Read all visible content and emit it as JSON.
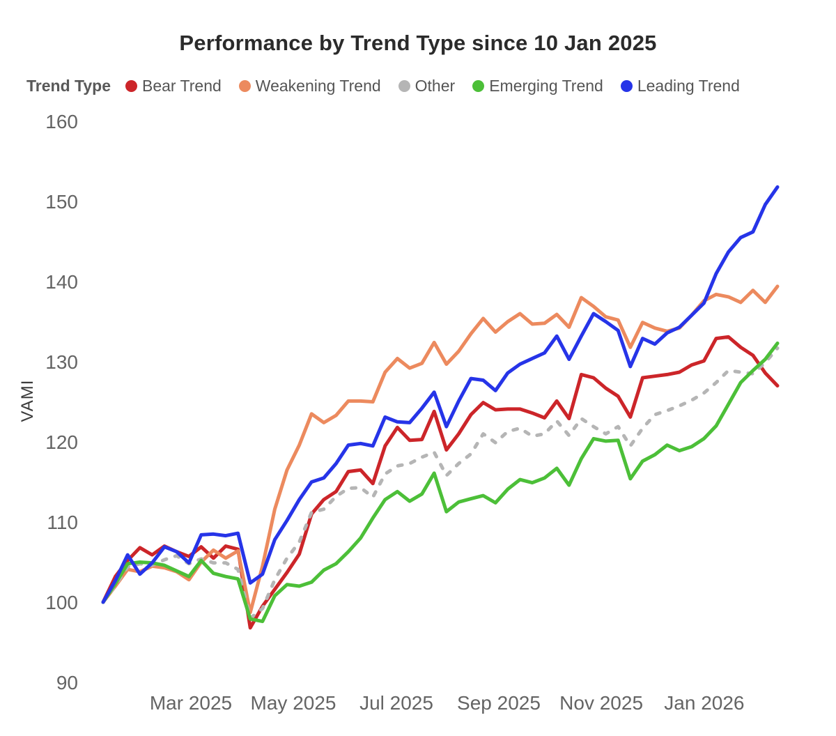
{
  "title": "Performance by Trend Type since 10 Jan 2025",
  "legend": {
    "label": "Trend Type",
    "items": [
      {
        "label": "Bear Trend",
        "color": "#cc2529"
      },
      {
        "label": "Weakening Trend",
        "color": "#ec8a5e"
      },
      {
        "label": "Other",
        "color": "#b5b5b5"
      },
      {
        "label": "Emerging Trend",
        "color": "#4cbf38"
      },
      {
        "label": "Leading Trend",
        "color": "#2634e8"
      }
    ]
  },
  "chart_data": {
    "type": "line",
    "title": "Performance by Trend Type since 10 Jan 2025",
    "xlabel": "",
    "ylabel": "VAMI",
    "ylim": [
      88,
      163
    ],
    "grid": false,
    "legend_position": "top-left",
    "x_unit": "weekly points since 10 Jan 2025",
    "x_start_label": "10 Jan 2025",
    "y_ticks": [
      90,
      100,
      110,
      120,
      130,
      140,
      150,
      160
    ],
    "x_ticks": [
      {
        "label": "Mar 2025",
        "week": 7.16
      },
      {
        "label": "May 2025",
        "week": 15.51
      },
      {
        "label": "Jul 2025",
        "week": 23.92
      },
      {
        "label": "Sep 2025",
        "week": 32.27
      },
      {
        "label": "Nov 2025",
        "week": 40.63
      },
      {
        "label": "Jan 2026",
        "week": 49.03
      }
    ],
    "series": [
      {
        "name": "Bear Trend",
        "color": "#cc2529",
        "style": "solid",
        "values": [
          100,
          103.2,
          105.2,
          106.8,
          105.9,
          107.0,
          106.3,
          105.7,
          106.9,
          105.5,
          107.0,
          106.6,
          96.8,
          99.5,
          101.6,
          103.7,
          106.0,
          111.0,
          112.8,
          113.8,
          116.3,
          116.5,
          114.8,
          119.5,
          121.8,
          120.2,
          120.3,
          123.8,
          119.0,
          121.0,
          123.4,
          124.9,
          124.0,
          124.1,
          124.1,
          123.6,
          123.0,
          125.1,
          122.9,
          128.4,
          128.0,
          126.7,
          125.7,
          123.1,
          128.0,
          128.2,
          128.4,
          128.7,
          129.6,
          130.1,
          132.9,
          133.1,
          131.8,
          130.8,
          128.6,
          127.0
        ]
      },
      {
        "name": "Weakening Trend",
        "color": "#ec8a5e",
        "style": "solid",
        "values": [
          100,
          102.0,
          104.1,
          103.8,
          104.5,
          104.3,
          103.8,
          102.8,
          105.0,
          106.5,
          105.5,
          106.4,
          98.7,
          104.5,
          111.6,
          116.5,
          119.6,
          123.5,
          122.4,
          123.3,
          125.1,
          125.1,
          125.0,
          128.7,
          130.4,
          129.2,
          129.8,
          132.4,
          129.7,
          131.3,
          133.5,
          135.4,
          133.7,
          135.0,
          136.0,
          134.7,
          134.8,
          135.9,
          134.3,
          138.0,
          136.9,
          135.6,
          135.2,
          131.8,
          134.9,
          134.2,
          133.8,
          134.2,
          135.8,
          137.6,
          138.4,
          138.1,
          137.4,
          138.9,
          137.4,
          139.4
        ]
      },
      {
        "name": "Other",
        "color": "#b5b5b5",
        "style": "dashed",
        "values": [
          100,
          102.1,
          104.4,
          104.8,
          104.6,
          105.3,
          105.8,
          104.8,
          105.4,
          104.9,
          104.9,
          104.1,
          98.0,
          99.2,
          102.8,
          105.5,
          107.5,
          111.2,
          111.6,
          113.2,
          114.2,
          114.3,
          113.1,
          116.0,
          117.0,
          117.3,
          118.1,
          118.7,
          115.8,
          117.3,
          118.5,
          121.0,
          119.9,
          121.3,
          121.7,
          120.7,
          121.0,
          122.6,
          120.8,
          122.9,
          121.9,
          121.0,
          121.9,
          119.5,
          121.7,
          123.4,
          123.9,
          124.5,
          125.2,
          126.1,
          127.4,
          128.9,
          128.7,
          128.5,
          129.9,
          131.7
        ]
      },
      {
        "name": "Emerging Trend",
        "color": "#4cbf38",
        "style": "solid",
        "values": [
          100,
          102.3,
          104.8,
          105.0,
          104.9,
          104.6,
          103.9,
          103.2,
          105.2,
          103.6,
          103.2,
          102.9,
          97.9,
          97.6,
          100.8,
          102.2,
          102.0,
          102.5,
          104.0,
          104.8,
          106.3,
          108.0,
          110.5,
          112.8,
          113.8,
          112.6,
          113.5,
          116.1,
          111.3,
          112.5,
          112.9,
          113.3,
          112.4,
          114.1,
          115.3,
          114.9,
          115.5,
          116.7,
          114.6,
          117.9,
          120.4,
          120.1,
          120.2,
          115.4,
          117.6,
          118.4,
          119.6,
          118.9,
          119.4,
          120.4,
          122.0,
          124.7,
          127.4,
          128.9,
          130.3,
          132.3
        ]
      },
      {
        "name": "Leading Trend",
        "color": "#2634e8",
        "style": "solid",
        "values": [
          100,
          102.7,
          105.9,
          103.5,
          104.9,
          106.9,
          106.3,
          104.9,
          108.4,
          108.5,
          108.3,
          108.6,
          102.4,
          103.5,
          107.8,
          110.2,
          112.8,
          115.0,
          115.5,
          117.3,
          119.6,
          119.8,
          119.5,
          123.1,
          122.5,
          122.4,
          124.2,
          126.2,
          121.9,
          125.1,
          127.9,
          127.7,
          126.4,
          128.6,
          129.7,
          130.4,
          131.1,
          133.2,
          130.3,
          133.2,
          136.0,
          135.0,
          133.9,
          129.4,
          132.9,
          132.2,
          133.6,
          134.3,
          135.8,
          137.3,
          141.0,
          143.7,
          145.5,
          146.2,
          149.6,
          151.8
        ]
      }
    ]
  }
}
